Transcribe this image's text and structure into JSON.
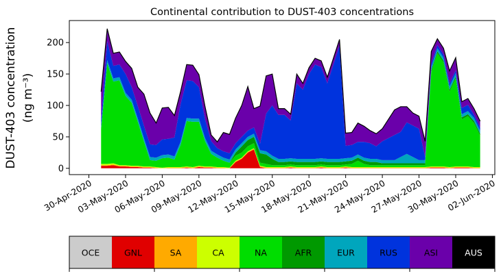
{
  "chart_data": {
    "type": "area",
    "stacked": true,
    "title": "Continental contribution to DUST-403 concentrations",
    "ylabel_line1": "DUST-403 concentration",
    "ylabel_line2": "(ng m⁻³)",
    "xlabel": "",
    "ylim": [
      -10,
      235
    ],
    "yticks": [
      0,
      50,
      100,
      150,
      200
    ],
    "xlim": [
      -1.6,
      33.2
    ],
    "xtick_labels": [
      "30-Apr-2020",
      "03-May-2020",
      "06-May-2020",
      "09-May-2020",
      "12-May-2020",
      "15-May-2020",
      "18-May-2020",
      "21-May-2020",
      "24-May-2020",
      "27-May-2020",
      "30-May-2020",
      "02-Jun-2020"
    ],
    "xtick_days": [
      0,
      3,
      6,
      9,
      12,
      15,
      18,
      21,
      24,
      27,
      30,
      33
    ],
    "x_days": [
      1,
      1.5,
      2,
      2.5,
      3,
      3.5,
      4,
      4.5,
      5,
      5.5,
      6,
      6.5,
      7,
      7.5,
      8,
      8.5,
      9,
      9.5,
      10,
      10.5,
      11,
      11.5,
      12,
      12.5,
      13,
      13.5,
      14,
      14.5,
      15,
      15.5,
      16,
      16.5,
      17,
      17.5,
      18,
      18.5,
      19,
      19.5,
      20,
      20.5,
      21,
      21.5,
      22,
      22.5,
      23,
      23.5,
      24,
      24.5,
      25,
      25.5,
      26,
      26.5,
      27,
      27.5,
      28,
      28.5,
      29,
      29.5,
      30,
      30.5,
      31,
      31.5,
      32
    ],
    "series": [
      {
        "name": "OCE",
        "color": "#cccccc",
        "values": [
          0,
          0,
          0,
          0,
          0,
          0,
          0,
          0,
          0,
          0,
          0,
          0,
          0,
          0,
          0,
          0,
          0,
          0,
          0,
          0,
          0,
          0,
          0,
          0,
          0,
          0,
          0,
          0,
          0,
          0,
          0,
          0,
          0,
          0,
          0,
          0,
          0,
          0,
          0,
          0,
          0,
          0,
          0,
          0,
          0,
          0,
          0,
          0,
          0,
          0,
          0,
          0,
          0,
          0,
          0,
          0,
          0,
          0,
          0,
          0,
          0,
          0,
          0
        ]
      },
      {
        "name": "GNL",
        "color": "#e00000",
        "values": [
          4,
          4,
          5,
          3,
          3,
          2,
          2,
          1,
          1,
          0,
          0,
          0,
          0,
          0,
          1,
          0,
          2,
          1,
          1,
          0,
          0,
          0,
          10,
          15,
          25,
          30,
          2,
          0,
          0,
          0,
          0,
          1,
          0,
          0,
          0,
          0,
          1,
          0,
          0,
          0,
          1,
          0,
          0,
          0,
          0,
          0,
          0,
          0,
          0,
          0,
          0,
          0,
          0,
          0,
          1,
          1,
          1,
          0,
          1,
          1,
          1,
          0,
          0
        ]
      },
      {
        "name": "SA",
        "color": "#ffaa00",
        "values": [
          1,
          1,
          1,
          1,
          1,
          1,
          1,
          1,
          1,
          1,
          0,
          1,
          1,
          1,
          1,
          1,
          1,
          1,
          1,
          1,
          1,
          0,
          1,
          1,
          1,
          1,
          1,
          1,
          1,
          1,
          1,
          1,
          1,
          1,
          1,
          1,
          1,
          1,
          1,
          1,
          1,
          1,
          1,
          1,
          1,
          1,
          1,
          1,
          1,
          1,
          1,
          1,
          1,
          1,
          1,
          1,
          1,
          1,
          1,
          1,
          1,
          1,
          1
        ]
      },
      {
        "name": "CA",
        "color": "#ccff00",
        "values": [
          2,
          2,
          2,
          1,
          1,
          1,
          1,
          1,
          1,
          1,
          1,
          1,
          1,
          1,
          1,
          1,
          1,
          1,
          1,
          1,
          1,
          1,
          1,
          1,
          1,
          1,
          1,
          1,
          1,
          1,
          1,
          1,
          1,
          1,
          1,
          1,
          1,
          1,
          1,
          1,
          1,
          1,
          1,
          1,
          1,
          1,
          1,
          1,
          1,
          1,
          1,
          1,
          1,
          1,
          1,
          1,
          1,
          1,
          1,
          1,
          1,
          1,
          1
        ]
      },
      {
        "name": "NA",
        "color": "#00dd00",
        "values": [
          55,
          160,
          130,
          135,
          110,
          100,
          70,
          40,
          10,
          10,
          15,
          15,
          12,
          35,
          72,
          72,
          70,
          40,
          20,
          15,
          10,
          8,
          8,
          8,
          8,
          8,
          5,
          5,
          3,
          3,
          3,
          3,
          3,
          3,
          3,
          3,
          3,
          3,
          3,
          3,
          3,
          5,
          10,
          5,
          3,
          3,
          3,
          3,
          3,
          3,
          3,
          3,
          3,
          3,
          150,
          180,
          165,
          120,
          140,
          75,
          80,
          70,
          50
        ]
      },
      {
        "name": "AFR",
        "color": "#009900",
        "values": [
          0,
          0,
          0,
          0,
          0,
          0,
          0,
          0,
          0,
          0,
          0,
          0,
          0,
          0,
          0,
          0,
          0,
          0,
          0,
          0,
          0,
          0,
          5,
          10,
          10,
          10,
          15,
          15,
          10,
          5,
          5,
          5,
          5,
          5,
          5,
          5,
          5,
          5,
          5,
          5,
          5,
          5,
          5,
          5,
          5,
          5,
          3,
          3,
          3,
          3,
          3,
          3,
          3,
          3,
          3,
          3,
          3,
          3,
          3,
          3,
          3,
          3,
          3
        ]
      },
      {
        "name": "EUR",
        "color": "#00a6bd",
        "values": [
          5,
          5,
          5,
          5,
          5,
          5,
          5,
          5,
          5,
          5,
          5,
          5,
          5,
          5,
          5,
          5,
          5,
          5,
          5,
          5,
          5,
          5,
          5,
          5,
          5,
          5,
          5,
          5,
          5,
          5,
          5,
          5,
          5,
          5,
          5,
          5,
          5,
          5,
          5,
          5,
          5,
          5,
          5,
          5,
          5,
          5,
          5,
          5,
          5,
          10,
          15,
          10,
          5,
          5,
          5,
          5,
          5,
          5,
          5,
          5,
          5,
          5,
          5
        ]
      },
      {
        "name": "RUS",
        "color": "#0033dd",
        "values": [
          10,
          30,
          20,
          20,
          30,
          20,
          20,
          20,
          20,
          20,
          25,
          25,
          30,
          60,
          60,
          60,
          50,
          30,
          15,
          10,
          10,
          10,
          10,
          10,
          10,
          10,
          10,
          60,
          80,
          70,
          70,
          60,
          120,
          110,
          135,
          150,
          145,
          120,
          150,
          180,
          20,
          20,
          20,
          25,
          25,
          20,
          30,
          35,
          40,
          40,
          50,
          50,
          50,
          5,
          5,
          5,
          5,
          5,
          5,
          10,
          10,
          5,
          5
        ]
      },
      {
        "name": "ASI",
        "color": "#6a00aa",
        "values": [
          45,
          20,
          20,
          20,
          20,
          30,
          30,
          50,
          50,
          35,
          50,
          50,
          35,
          20,
          25,
          25,
          20,
          20,
          10,
          10,
          30,
          30,
          40,
          50,
          70,
          30,
          60,
          60,
          50,
          10,
          10,
          10,
          15,
          10,
          10,
          10,
          10,
          10,
          10,
          10,
          20,
          20,
          30,
          25,
          20,
          20,
          20,
          30,
          40,
          40,
          25,
          20,
          20,
          25,
          20,
          10,
          10,
          20,
          20,
          10,
          10,
          10,
          10
        ]
      },
      {
        "name": "AUS",
        "color": "#000000",
        "values": [
          0,
          0,
          0,
          0,
          0,
          0,
          0,
          0,
          0,
          0,
          0,
          0,
          0,
          0,
          0,
          0,
          0,
          0,
          0,
          0,
          0,
          0,
          0,
          0,
          0,
          0,
          0,
          0,
          0,
          0,
          0,
          0,
          0,
          0,
          0,
          0,
          0,
          0,
          0,
          0,
          0,
          0,
          0,
          0,
          0,
          0,
          0,
          0,
          0,
          0,
          0,
          0,
          0,
          0,
          0,
          0,
          0,
          0,
          0,
          0,
          0,
          0,
          0
        ]
      }
    ],
    "grid": false,
    "legend": "bottom-colorbar"
  }
}
